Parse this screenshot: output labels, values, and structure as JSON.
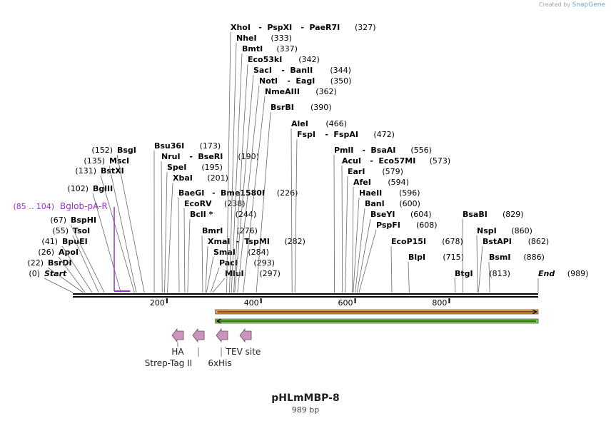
{
  "credit": {
    "prefix": "Created by",
    "brand": "SnapGene"
  },
  "plasmid": {
    "name": "pHLmMBP-8",
    "size_label": "989 bp",
    "length": 989
  },
  "axis": {
    "ticks": [
      {
        "pos": 200,
        "label": "200"
      },
      {
        "pos": 400,
        "label": "400"
      },
      {
        "pos": 600,
        "label": "600"
      },
      {
        "pos": 800,
        "label": "800"
      }
    ]
  },
  "sites": [
    {
      "id": "start",
      "pos": 0,
      "parts": [
        {
          "t": "Start"
        }
      ],
      "num": "(0)",
      "numLeft": true,
      "italic": true
    },
    {
      "id": "bsrdi",
      "pos": 22,
      "parts": [
        {
          "t": "BsrDI"
        }
      ],
      "num": "(22)",
      "numLeft": true
    },
    {
      "id": "apoi",
      "pos": 26,
      "parts": [
        {
          "t": "ApoI"
        }
      ],
      "num": "(26)",
      "numLeft": true
    },
    {
      "id": "bpuei",
      "pos": 41,
      "parts": [
        {
          "t": "BpuEI"
        }
      ],
      "num": "(41)",
      "numLeft": true
    },
    {
      "id": "tsoi",
      "pos": 55,
      "parts": [
        {
          "t": "TsoI"
        }
      ],
      "num": "(55)",
      "numLeft": true
    },
    {
      "id": "bsphi",
      "pos": 67,
      "parts": [
        {
          "t": "BspHI"
        }
      ],
      "num": "(67)",
      "numLeft": true
    },
    {
      "id": "bglii",
      "pos": 102,
      "parts": [
        {
          "t": "BglII"
        }
      ],
      "num": "(102)",
      "numLeft": true
    },
    {
      "id": "bstxi",
      "pos": 131,
      "parts": [
        {
          "t": "BstXI"
        }
      ],
      "num": "(131)",
      "numLeft": true
    },
    {
      "id": "msci",
      "pos": 135,
      "parts": [
        {
          "t": "MscI"
        }
      ],
      "num": "(135)",
      "numLeft": true
    },
    {
      "id": "bsgi",
      "pos": 152,
      "parts": [
        {
          "t": "BsgI"
        }
      ],
      "num": "(152)",
      "numLeft": true
    },
    {
      "id": "bsu36i",
      "pos": 173,
      "parts": [
        {
          "t": "Bsu36I"
        }
      ],
      "num": "(173)"
    },
    {
      "id": "nrui",
      "pos": 190,
      "parts": [
        {
          "t": "NruI"
        },
        {
          "t": "BseRI"
        }
      ],
      "num": "(190)"
    },
    {
      "id": "spei",
      "pos": 195,
      "parts": [
        {
          "t": "SpeI"
        }
      ],
      "num": "(195)"
    },
    {
      "id": "xbai",
      "pos": 201,
      "parts": [
        {
          "t": "XbaI"
        }
      ],
      "num": "(201)"
    },
    {
      "id": "baegi",
      "pos": 226,
      "parts": [
        {
          "t": "BaeGI"
        },
        {
          "t": "Bme1580I"
        }
      ],
      "num": "(226)"
    },
    {
      "id": "ecorv",
      "pos": 238,
      "parts": [
        {
          "t": "EcoRV"
        }
      ],
      "num": "(238)"
    },
    {
      "id": "bcli",
      "pos": 244,
      "parts": [
        {
          "t": "BclI *"
        }
      ],
      "num": "(244)"
    },
    {
      "id": "bmri",
      "pos": 276,
      "parts": [
        {
          "t": "BmrI"
        }
      ],
      "num": "(276)"
    },
    {
      "id": "xmai",
      "pos": 282,
      "parts": [
        {
          "t": "XmaI"
        },
        {
          "t": "TspMI"
        }
      ],
      "num": "(282)"
    },
    {
      "id": "smai",
      "pos": 284,
      "parts": [
        {
          "t": "SmaI"
        }
      ],
      "num": "(284)"
    },
    {
      "id": "paci",
      "pos": 293,
      "parts": [
        {
          "t": "PacI"
        }
      ],
      "num": "(293)"
    },
    {
      "id": "mlui",
      "pos": 297,
      "parts": [
        {
          "t": "MluI"
        }
      ],
      "num": "(297)"
    },
    {
      "id": "xhoi",
      "pos": 327,
      "parts": [
        {
          "t": "XhoI"
        },
        {
          "t": "PspXI"
        },
        {
          "t": "PaeR7I"
        }
      ],
      "num": "(327)"
    },
    {
      "id": "nhei",
      "pos": 333,
      "parts": [
        {
          "t": "NheI"
        }
      ],
      "num": "(333)"
    },
    {
      "id": "bmti",
      "pos": 337,
      "parts": [
        {
          "t": "BmtI"
        }
      ],
      "num": "(337)"
    },
    {
      "id": "eco53ki",
      "pos": 342,
      "parts": [
        {
          "t": "Eco53kI"
        }
      ],
      "num": "(342)"
    },
    {
      "id": "saci",
      "pos": 344,
      "parts": [
        {
          "t": "SacI"
        },
        {
          "t": "BanII"
        }
      ],
      "num": "(344)"
    },
    {
      "id": "noti",
      "pos": 350,
      "parts": [
        {
          "t": "NotI"
        },
        {
          "t": "EagI"
        }
      ],
      "num": "(350)"
    },
    {
      "id": "nmeaiii",
      "pos": 362,
      "parts": [
        {
          "t": "NmeAIII"
        }
      ],
      "num": "(362)"
    },
    {
      "id": "bsrbi",
      "pos": 390,
      "parts": [
        {
          "t": "BsrBI"
        }
      ],
      "num": "(390)"
    },
    {
      "id": "alei",
      "pos": 466,
      "parts": [
        {
          "t": "AleI"
        }
      ],
      "num": "(466)"
    },
    {
      "id": "fspi",
      "pos": 472,
      "parts": [
        {
          "t": "FspI"
        },
        {
          "t": "FspAI"
        }
      ],
      "num": "(472)"
    },
    {
      "id": "pmli",
      "pos": 556,
      "parts": [
        {
          "t": "PmlI"
        },
        {
          "t": "BsaAI"
        }
      ],
      "num": "(556)"
    },
    {
      "id": "acui",
      "pos": 573,
      "parts": [
        {
          "t": "AcuI"
        },
        {
          "t": "Eco57MI"
        }
      ],
      "num": "(573)"
    },
    {
      "id": "eari",
      "pos": 579,
      "parts": [
        {
          "t": "EarI"
        }
      ],
      "num": "(579)"
    },
    {
      "id": "afei",
      "pos": 594,
      "parts": [
        {
          "t": "AfeI"
        }
      ],
      "num": "(594)"
    },
    {
      "id": "haeii",
      "pos": 596,
      "parts": [
        {
          "t": "HaeII"
        }
      ],
      "num": "(596)"
    },
    {
      "id": "bani",
      "pos": 600,
      "parts": [
        {
          "t": "BanI"
        }
      ],
      "num": "(600)"
    },
    {
      "id": "bseyi",
      "pos": 604,
      "parts": [
        {
          "t": "BseYI"
        }
      ],
      "num": "(604)"
    },
    {
      "id": "pspfi",
      "pos": 608,
      "parts": [
        {
          "t": "PspFI"
        }
      ],
      "num": "(608)"
    },
    {
      "id": "ecop15i",
      "pos": 678,
      "parts": [
        {
          "t": "EcoP15I"
        }
      ],
      "num": "(678)"
    },
    {
      "id": "blpi",
      "pos": 715,
      "parts": [
        {
          "t": "BlpI"
        }
      ],
      "num": "(715)"
    },
    {
      "id": "btgi",
      "pos": 813,
      "parts": [
        {
          "t": "BtgI"
        }
      ],
      "num": "(813)"
    },
    {
      "id": "bsabi",
      "pos": 829,
      "parts": [
        {
          "t": "BsaBI"
        }
      ],
      "num": "(829)"
    },
    {
      "id": "nspi",
      "pos": 860,
      "parts": [
        {
          "t": "NspI"
        }
      ],
      "num": "(860)"
    },
    {
      "id": "bstapi",
      "pos": 862,
      "parts": [
        {
          "t": "BstAPI"
        }
      ],
      "num": "(862)"
    },
    {
      "id": "bsmi",
      "pos": 886,
      "parts": [
        {
          "t": "BsmI"
        }
      ],
      "num": "(886)"
    },
    {
      "id": "end",
      "pos": 989,
      "parts": [
        {
          "t": "End"
        }
      ],
      "num": "(989)",
      "italic": true
    }
  ],
  "primer": {
    "range": "(85 .. 104)",
    "name": "Bglob-pA-R",
    "start": 85,
    "end": 104,
    "color": "#9b30d0"
  },
  "orf_bars": [
    {
      "name": "forward-orf",
      "start": 312,
      "end": 989,
      "color": "#f0a040",
      "direction": "right"
    },
    {
      "name": "reverse-orf",
      "start": 312,
      "end": 989,
      "color": "#7ed050",
      "direction": "left"
    }
  ],
  "features": [
    {
      "name": "HA",
      "color": "#c995ba"
    },
    {
      "name": "Strep-Tag II",
      "color": "#c995ba"
    },
    {
      "name": "6xHis",
      "color": "#c995ba"
    },
    {
      "name": "TEV site",
      "color": "#c995ba"
    }
  ]
}
